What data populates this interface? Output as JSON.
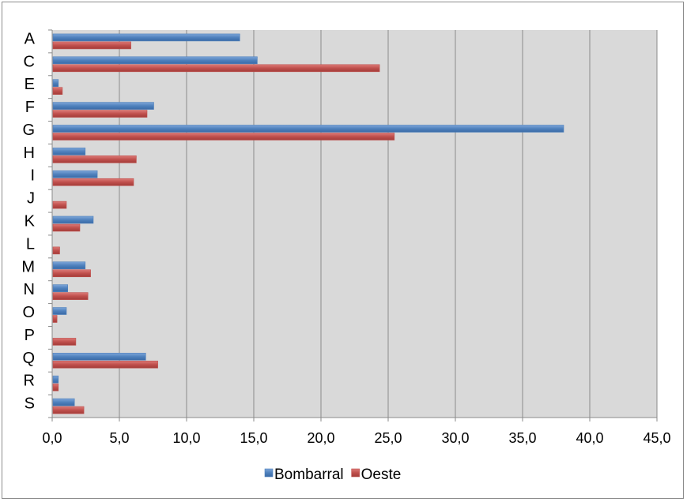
{
  "chart_data": {
    "type": "bar",
    "orientation": "horizontal",
    "title": "",
    "xlabel": "",
    "ylabel": "",
    "categories": [
      "A",
      "C",
      "E",
      "F",
      "G",
      "H",
      "I",
      "J",
      "K",
      "L",
      "M",
      "N",
      "O",
      "P",
      "Q",
      "R",
      "S"
    ],
    "series": [
      {
        "name": "Bombarral",
        "color": "#4f81bd",
        "values": [
          13.9,
          15.2,
          0.4,
          7.5,
          38.0,
          2.4,
          3.3,
          0.0,
          3.0,
          0.0,
          2.4,
          1.1,
          1.0,
          0.0,
          6.9,
          0.4,
          1.6
        ]
      },
      {
        "name": "Oeste",
        "color": "#c0504d",
        "values": [
          5.8,
          24.3,
          0.7,
          7.0,
          25.4,
          6.2,
          6.0,
          1.0,
          2.0,
          0.5,
          2.8,
          2.6,
          0.3,
          1.7,
          7.8,
          0.4,
          2.3
        ]
      }
    ],
    "xlim": [
      0,
      45
    ],
    "xticks": [
      "0,0",
      "5,0",
      "10,0",
      "15,0",
      "20,0",
      "25,0",
      "30,0",
      "35,0",
      "40,0",
      "45,0"
    ],
    "grid": true,
    "plot_background": "#d9d9d9",
    "legend_position": "bottom"
  }
}
